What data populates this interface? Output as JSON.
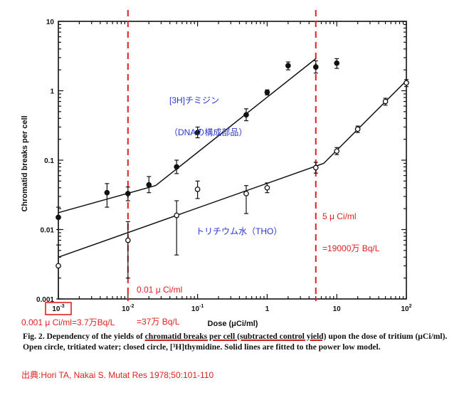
{
  "chart_data": {
    "type": "scatter",
    "xlabel": "Dose (μCi/ml)",
    "ylabel": "Chromatid breaks per cell",
    "xscale": "log",
    "yscale": "log",
    "xlim": [
      0.001,
      100
    ],
    "ylim": [
      0.001,
      10
    ],
    "x_ticks": [
      {
        "value": 0.001,
        "base": "10",
        "exp": "-3"
      },
      {
        "value": 0.01,
        "base": "10",
        "exp": "-2"
      },
      {
        "value": 0.1,
        "base": "10",
        "exp": "-1"
      },
      {
        "value": 1,
        "base": "1",
        "exp": ""
      },
      {
        "value": 10,
        "base": "10",
        "exp": ""
      },
      {
        "value": 100,
        "base": "10",
        "exp": "2"
      }
    ],
    "y_ticks": [
      {
        "value": 0.001,
        "label": "0.001"
      },
      {
        "value": 0.01,
        "label": "0.01"
      },
      {
        "value": 0.1,
        "label": "0.1"
      },
      {
        "value": 1,
        "label": "1"
      },
      {
        "value": 10,
        "label": "10"
      }
    ],
    "series": [
      {
        "name": "[3H]チミジン（DNAの構成部品）",
        "marker": "closed-circle",
        "points": [
          {
            "x": 0.001,
            "y": 0.015,
            "lo": 0.01,
            "hi": 0.021
          },
          {
            "x": 0.005,
            "y": 0.034,
            "lo": 0.021,
            "hi": 0.046
          },
          {
            "x": 0.01,
            "y": 0.033,
            "lo": 0.026,
            "hi": 0.041
          },
          {
            "x": 0.02,
            "y": 0.044,
            "lo": 0.034,
            "hi": 0.058
          },
          {
            "x": 0.05,
            "y": 0.08,
            "lo": 0.064,
            "hi": 0.1
          },
          {
            "x": 0.1,
            "y": 0.25,
            "lo": 0.21,
            "hi": 0.3
          },
          {
            "x": 0.5,
            "y": 0.45,
            "lo": 0.37,
            "hi": 0.55
          },
          {
            "x": 1,
            "y": 0.95,
            "lo": 0.87,
            "hi": 1.03
          },
          {
            "x": 2,
            "y": 2.3,
            "lo": 2.0,
            "hi": 2.6
          },
          {
            "x": 5,
            "y": 2.2,
            "lo": 1.8,
            "hi": 2.7
          },
          {
            "x": 10,
            "y": 2.5,
            "lo": 2.1,
            "hi": 2.9
          }
        ],
        "fit": [
          [
            0.001,
            0.0175
          ],
          [
            0.025,
            0.043
          ],
          [
            5,
            2.9
          ]
        ]
      },
      {
        "name": "トリチウム水（THO）",
        "marker": "open-circle",
        "points": [
          {
            "x": 0.001,
            "y": 0.003,
            "lo": 0.001,
            "hi": 0.006
          },
          {
            "x": 0.01,
            "y": 0.007,
            "lo": 0.002,
            "hi": 0.013
          },
          {
            "x": 0.05,
            "y": 0.016,
            "lo": 0.0043,
            "hi": 0.026
          },
          {
            "x": 0.1,
            "y": 0.038,
            "lo": 0.028,
            "hi": 0.05
          },
          {
            "x": 0.5,
            "y": 0.033,
            "lo": 0.017,
            "hi": 0.043
          },
          {
            "x": 1,
            "y": 0.04,
            "lo": 0.034,
            "hi": 0.047
          },
          {
            "x": 5,
            "y": 0.078,
            "lo": 0.065,
            "hi": 0.093
          },
          {
            "x": 10,
            "y": 0.135,
            "lo": 0.12,
            "hi": 0.152
          },
          {
            "x": 20,
            "y": 0.28,
            "lo": 0.25,
            "hi": 0.31
          },
          {
            "x": 50,
            "y": 0.7,
            "lo": 0.62,
            "hi": 0.78
          },
          {
            "x": 100,
            "y": 1.3,
            "lo": 1.15,
            "hi": 1.45
          }
        ],
        "fit": [
          [
            0.001,
            0.004
          ],
          [
            6.5,
            0.09
          ],
          [
            100,
            1.4
          ]
        ]
      }
    ],
    "markers": [
      {
        "x": 0.01,
        "color": "#e02020",
        "style": "dashed"
      },
      {
        "x": 5,
        "color": "#e02020",
        "style": "dashed"
      }
    ],
    "highlight_tick": 0.001
  },
  "annotations": {
    "dna_line1": "[3H]チミジン",
    "dna_line2": "（DNAの構成部品）",
    "tho": "トリチウム水（THO）",
    "note_001_line1": "0.01 μ Ci/ml",
    "note_001_line2": "=37万 Bq/L",
    "note_5_line1": "5 μ Ci/ml",
    "note_5_line2": "=19000万 Bq/L",
    "note_0001": "0.001 μ Ci/ml=3.7万Bq/L"
  },
  "caption": {
    "part1": "Fig. 2. Dependency of the yields of ",
    "underlined": "chromatid breaks per cell  (subtracted control yield)",
    "part2": " upon the dose of tritium (μCi/ml). Open circle, tritiated water; closed circle, [³H]thymidine. Solid lines are fitted to the power low model."
  },
  "source": "出典:Hori TA, Nakai S. Mutat Res 1978;50:101-110",
  "colors": {
    "axis": "#111111",
    "red": "#e02020",
    "blue": "#2b36c9"
  }
}
